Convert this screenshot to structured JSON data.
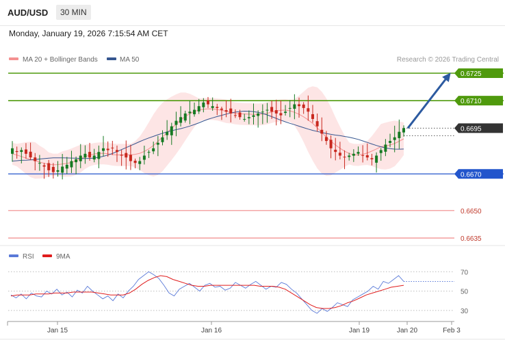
{
  "header": {
    "symbol": "AUD/USD",
    "timeframe": "30 MIN"
  },
  "datetime": "Monday, January 19, 2026 7:15:54 AM CET",
  "colors": {
    "resistance": "#4f9a0d",
    "pivot": "#2255cc",
    "support": "#f08a8a",
    "current": "#333333",
    "ma20": "#f49090",
    "ma50": "#35558f",
    "band_fill": "#fde0e0",
    "bull": "#167a23",
    "bear": "#c8281e",
    "arrow": "#2c5aa0",
    "rsi": "#5a7ad8",
    "rsi_ma": "#e01c1c"
  },
  "chart_data": [
    {
      "type": "candlestick",
      "title": "AUD/USD",
      "timeframe": "30 MIN",
      "legend": [
        {
          "label": "MA 20 + Bollinger Bands",
          "color": "#f49090",
          "icon": "band-swatch"
        },
        {
          "label": "MA 50",
          "color": "#35558f",
          "icon": "line-swatch"
        }
      ],
      "copyright": "Research © 2026 Trading Central",
      "ylim": [
        0.6628,
        0.6736
      ],
      "levels": [
        {
          "value": 0.6725,
          "label": "0.6725",
          "kind": "resistance"
        },
        {
          "value": 0.671,
          "label": "0.6710",
          "kind": "resistance"
        },
        {
          "value": 0.6695,
          "label": "0.6695",
          "kind": "current"
        },
        {
          "value": 0.667,
          "label": "0.6670",
          "kind": "pivot"
        },
        {
          "value": 0.665,
          "label": "0.6650",
          "kind": "support"
        },
        {
          "value": 0.6635,
          "label": "0.6635",
          "kind": "support"
        }
      ],
      "last_price": 0.6695,
      "forecast_target": 0.6725,
      "candles_close": [
        0.6684,
        0.6682,
        0.6683,
        0.6681,
        0.6679,
        0.6677,
        0.6676,
        0.6674,
        0.6672,
        0.6671,
        0.6672,
        0.6674,
        0.6675,
        0.6677,
        0.6678,
        0.668,
        0.6681,
        0.6679,
        0.668,
        0.6682,
        0.6684,
        0.6683,
        0.6684,
        0.6682,
        0.668,
        0.6679,
        0.6677,
        0.6676,
        0.6677,
        0.668,
        0.6682,
        0.6684,
        0.6687,
        0.669,
        0.6693,
        0.6696,
        0.6699,
        0.6701,
        0.6703,
        0.6704,
        0.6705,
        0.6707,
        0.6709,
        0.6708,
        0.6707,
        0.6706,
        0.6705,
        0.6704,
        0.6703,
        0.6702,
        0.6701,
        0.67,
        0.6701,
        0.6702,
        0.6703,
        0.6704,
        0.6705,
        0.6704,
        0.6703,
        0.6702,
        0.6704,
        0.6706,
        0.6708,
        0.6707,
        0.6706,
        0.6704,
        0.67,
        0.6696,
        0.6692,
        0.6688,
        0.6684,
        0.6682,
        0.668,
        0.6679,
        0.668,
        0.6681,
        0.6682,
        0.668,
        0.6679,
        0.6678,
        0.668,
        0.6683,
        0.6686,
        0.6688,
        0.669,
        0.6693,
        0.6695
      ],
      "ma20_approx": [
        0.6683,
        0.6682,
        0.6681,
        0.668,
        0.6679,
        0.6678,
        0.6677,
        0.6677,
        0.6678,
        0.668,
        0.6683,
        0.6686,
        0.6689,
        0.6691,
        0.6693,
        0.6695,
        0.6697,
        0.6699,
        0.67,
        0.6702,
        0.6703,
        0.6704,
        0.6704,
        0.6704,
        0.6703,
        0.6702,
        0.67,
        0.6697,
        0.6693,
        0.6689,
        0.6686,
        0.6684,
        0.6683,
        0.6684,
        0.6686,
        0.6689
      ],
      "ma50_approx": [
        0.6685,
        0.6685,
        0.6685,
        0.6684,
        0.6684,
        0.6684,
        0.6685,
        0.6687,
        0.6689,
        0.6692,
        0.6695,
        0.6698,
        0.67,
        0.6701,
        0.6702,
        0.6703,
        0.6703,
        0.6702,
        0.67,
        0.6698,
        0.6697,
        0.6696,
        0.6695
      ]
    },
    {
      "type": "line",
      "title": "RSI",
      "legend": [
        {
          "label": "RSI",
          "color": "#5a7ad8"
        },
        {
          "label": "9MA",
          "color": "#e01c1c"
        }
      ],
      "ylim": [
        20,
        78
      ],
      "yticks": [
        30,
        50,
        70
      ],
      "series": [
        {
          "name": "RSI",
          "values": [
            46,
            43,
            47,
            42,
            48,
            45,
            44,
            50,
            47,
            52,
            46,
            49,
            44,
            51,
            48,
            55,
            50,
            46,
            42,
            45,
            40,
            47,
            43,
            50,
            55,
            62,
            66,
            70,
            67,
            63,
            56,
            48,
            45,
            52,
            55,
            58,
            54,
            50,
            56,
            58,
            54,
            55,
            51,
            53,
            59,
            56,
            53,
            57,
            60,
            56,
            52,
            55,
            54,
            59,
            57,
            52,
            48,
            42,
            36,
            30,
            27,
            32,
            29,
            33,
            38,
            36,
            34,
            41,
            44,
            47,
            50,
            55,
            52,
            60,
            58,
            62,
            66,
            60
          ]
        },
        {
          "name": "9MA",
          "values": [
            45,
            46,
            46,
            46,
            47,
            47,
            47,
            48,
            48,
            48,
            49,
            49,
            49,
            49,
            48,
            47,
            46,
            46,
            46,
            48,
            52,
            57,
            61,
            64,
            66,
            65,
            62,
            60,
            58,
            56,
            55,
            55,
            56,
            56,
            56,
            56,
            56,
            56,
            56,
            56,
            55,
            55,
            55,
            54,
            52,
            48,
            44,
            40,
            36,
            33,
            32,
            32,
            33,
            35,
            38,
            40,
            43,
            46,
            48,
            50,
            52,
            54,
            55,
            56
          ]
        }
      ],
      "last_value": 60
    }
  ],
  "x_axis": {
    "labels": [
      "Jan 15",
      "Jan 16",
      "Jan 19",
      "Jan 20",
      "Feb 3"
    ]
  }
}
